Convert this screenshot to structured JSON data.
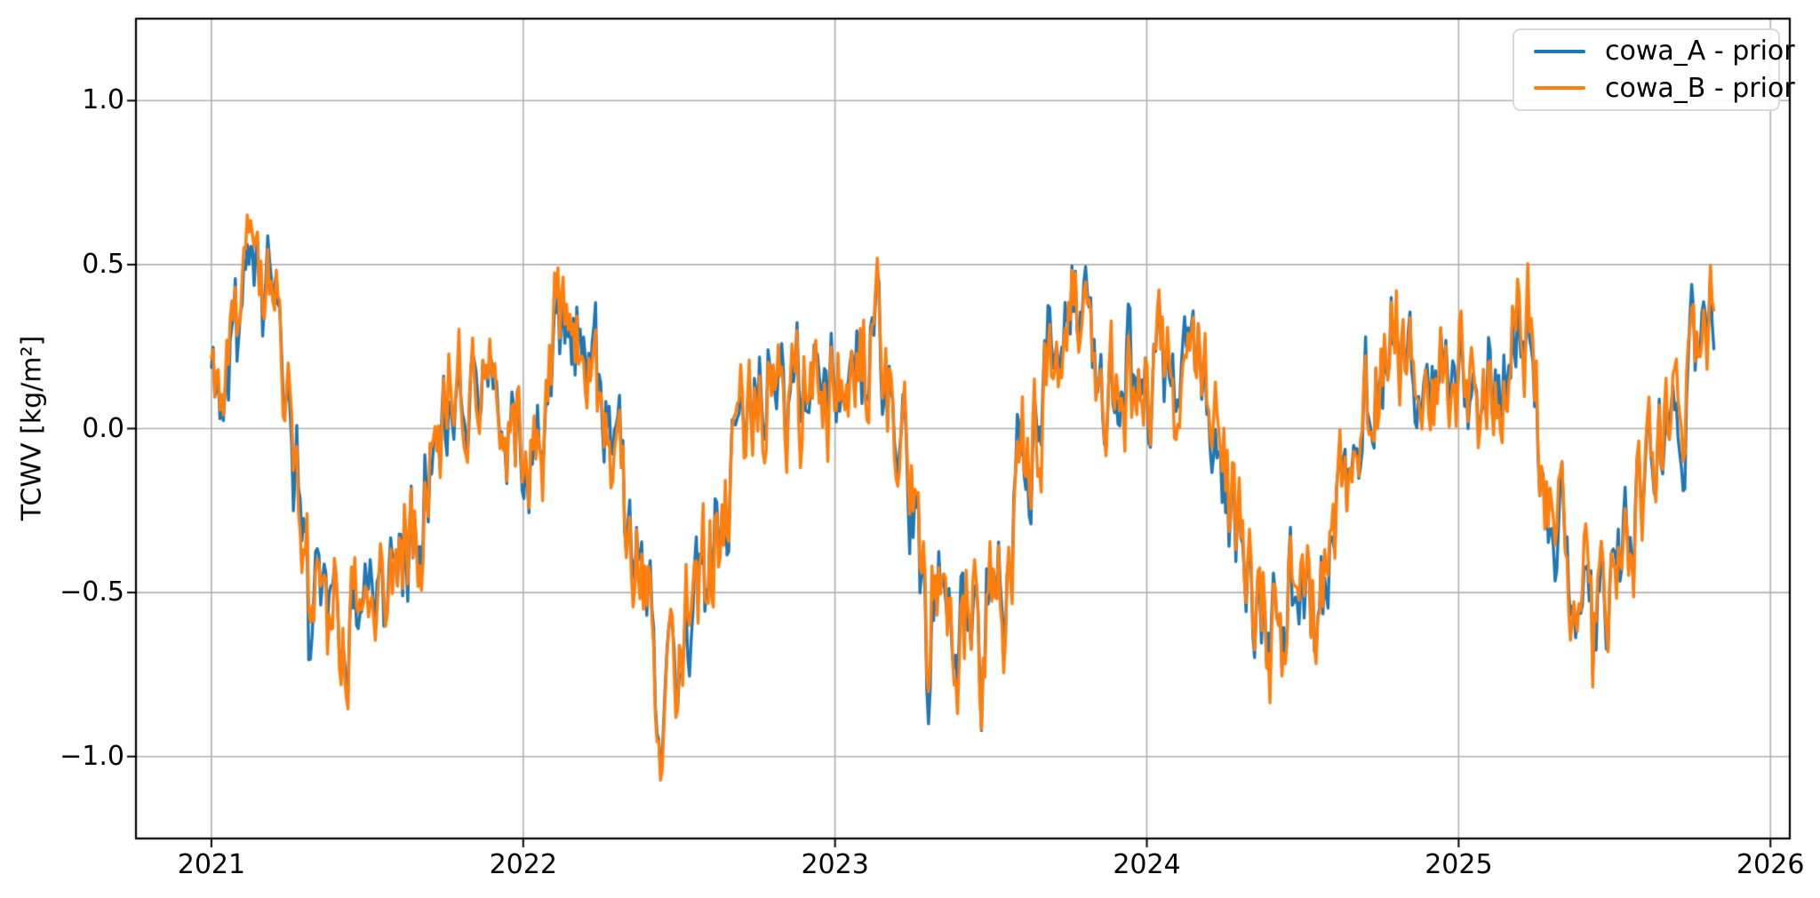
{
  "chart_data": {
    "type": "line",
    "title": "",
    "xlabel": "",
    "ylabel": "TCWV [kg/m²]",
    "xlim": [
      2020.758,
      2026.062
    ],
    "ylim": [
      -1.25,
      1.25
    ],
    "grid": true,
    "background_color": "#ffffff",
    "grid_color": "#b0b0b0",
    "axis_color": "#000000",
    "xticks": [
      {
        "v": 2021,
        "label": "2021"
      },
      {
        "v": 2022,
        "label": "2022"
      },
      {
        "v": 2023,
        "label": "2023"
      },
      {
        "v": 2024,
        "label": "2024"
      },
      {
        "v": 2025,
        "label": "2025"
      },
      {
        "v": 2026,
        "label": "2026"
      }
    ],
    "yticks": [
      {
        "v": -1.0,
        "label": "−1.0"
      },
      {
        "v": -0.5,
        "label": "−0.5"
      },
      {
        "v": 0.0,
        "label": "0.0"
      },
      {
        "v": 0.5,
        "label": "0.5"
      },
      {
        "v": 1.0,
        "label": "1.0"
      }
    ],
    "legend": {
      "position": "upper right"
    },
    "x_start": 2021.0,
    "x_end": 2025.82,
    "sampling_days": 2,
    "anchors_start": "2021-01",
    "anchors_interval": "monthly-mean",
    "noise": {
      "seed": 11,
      "phi": 0.5,
      "common_amp": 0.16,
      "indep_amp": 0.055
    },
    "events": [
      [
        2021.12,
        0.1,
        0.2,
        6
      ],
      [
        2021.18,
        0.14,
        0.04,
        4
      ],
      [
        2021.315,
        -0.5,
        -0.25,
        3
      ],
      [
        2021.52,
        -0.18,
        -0.22,
        4
      ],
      [
        2022.15,
        0.06,
        0.14,
        5
      ],
      [
        2022.44,
        -0.2,
        -0.26,
        5
      ],
      [
        2023.3,
        -0.24,
        -0.2,
        4
      ],
      [
        2023.47,
        -0.22,
        -0.26,
        4
      ],
      [
        2023.58,
        0.14,
        0.12,
        5
      ],
      [
        2023.76,
        0.1,
        0.1,
        4
      ],
      [
        2024.44,
        -0.2,
        -0.24,
        4
      ],
      [
        2024.62,
        0.14,
        0.14,
        5
      ],
      [
        2025.18,
        0.06,
        0.12,
        4
      ],
      [
        2025.31,
        -0.26,
        -0.15,
        3
      ],
      [
        2025.43,
        -0.15,
        -0.26,
        3
      ],
      [
        2025.81,
        0.1,
        0.07,
        3
      ]
    ],
    "series": [
      {
        "name": "cowa_A - prior",
        "color": "#1f77b4",
        "linewidth": 3.4,
        "common_scale": 0.9,
        "anchors_monthly": [
          0.18,
          0.42,
          0.3,
          -0.2,
          -0.55,
          -0.6,
          -0.5,
          -0.35,
          -0.1,
          0.15,
          0.2,
          0.0,
          -0.05,
          0.35,
          0.25,
          -0.1,
          -0.45,
          -0.8,
          -0.55,
          -0.35,
          0.0,
          0.15,
          0.1,
          0.15,
          0.2,
          0.25,
          0.0,
          -0.45,
          -0.55,
          -0.55,
          -0.5,
          -0.1,
          0.25,
          0.3,
          0.1,
          0.15,
          0.15,
          0.2,
          0.05,
          -0.3,
          -0.6,
          -0.55,
          -0.5,
          -0.25,
          0.1,
          0.2,
          0.15,
          0.2,
          0.1,
          0.15,
          0.35,
          -0.35,
          -0.45,
          -0.5,
          -0.35,
          -0.1,
          0.05,
          0.35
        ]
      },
      {
        "name": "cowa_B - prior",
        "color": "#ff7f0e",
        "linewidth": 3.4,
        "common_scale": 1.0,
        "anchors_monthly": [
          0.2,
          0.48,
          0.28,
          -0.22,
          -0.57,
          -0.58,
          -0.52,
          -0.33,
          -0.08,
          0.17,
          0.18,
          0.02,
          -0.07,
          0.38,
          0.23,
          -0.12,
          -0.47,
          -0.83,
          -0.53,
          -0.37,
          0.02,
          0.13,
          0.12,
          0.13,
          0.18,
          0.27,
          0.02,
          -0.43,
          -0.57,
          -0.53,
          -0.52,
          -0.08,
          0.23,
          0.28,
          0.12,
          0.13,
          0.17,
          0.18,
          0.07,
          -0.32,
          -0.62,
          -0.53,
          -0.48,
          -0.23,
          0.08,
          0.22,
          0.13,
          0.18,
          0.12,
          0.13,
          0.37,
          -0.33,
          -0.47,
          -0.52,
          -0.33,
          -0.08,
          0.07,
          0.37
        ]
      }
    ]
  }
}
